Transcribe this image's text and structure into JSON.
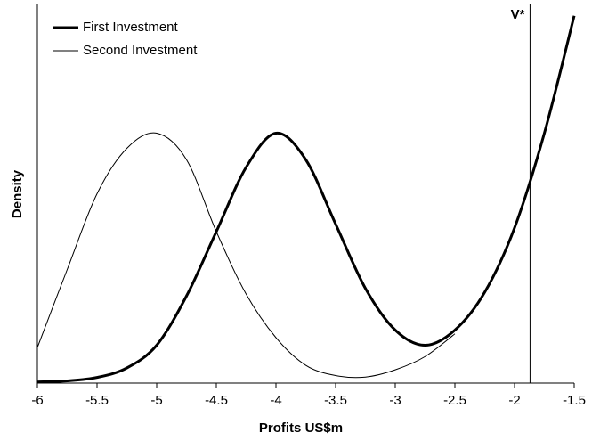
{
  "chart_data": {
    "type": "line",
    "x_label": "Profits US$m",
    "y_label": "Density",
    "x": [
      -6,
      -5.75,
      -5.5,
      -5.25,
      -5,
      -4.75,
      -4.5,
      -4.25,
      -4,
      -3.75,
      -3.5,
      -3.25,
      -3,
      -2.75,
      -2.5,
      -2.25,
      -2,
      -1.75,
      -1.5
    ],
    "series": [
      {
        "name": "First Investment",
        "color": "#000000",
        "width": 3,
        "values": [
          0.3,
          0.6,
          1.5,
          4,
          10,
          23,
          40,
          57,
          66,
          59,
          42,
          25,
          14,
          10,
          14,
          24,
          41,
          66,
          97
        ]
      },
      {
        "name": "Second Investment",
        "color": "#000000",
        "width": 1,
        "values": [
          9.4,
          30,
          50,
          62,
          66,
          59,
          40,
          23.5,
          12,
          4.7,
          2,
          1.6,
          3.5,
          7,
          13,
          null,
          null,
          null,
          null
        ]
      }
    ],
    "xlim": [
      -6,
      -1.5
    ],
    "xticks": [
      -6,
      -5.5,
      -5,
      -4.5,
      -4,
      -3.5,
      -3,
      -2.5,
      -2,
      -1.5
    ],
    "ylim": [
      0,
      100
    ],
    "vline": {
      "x": -1.87,
      "label": "V*"
    },
    "legend": "top-left"
  }
}
